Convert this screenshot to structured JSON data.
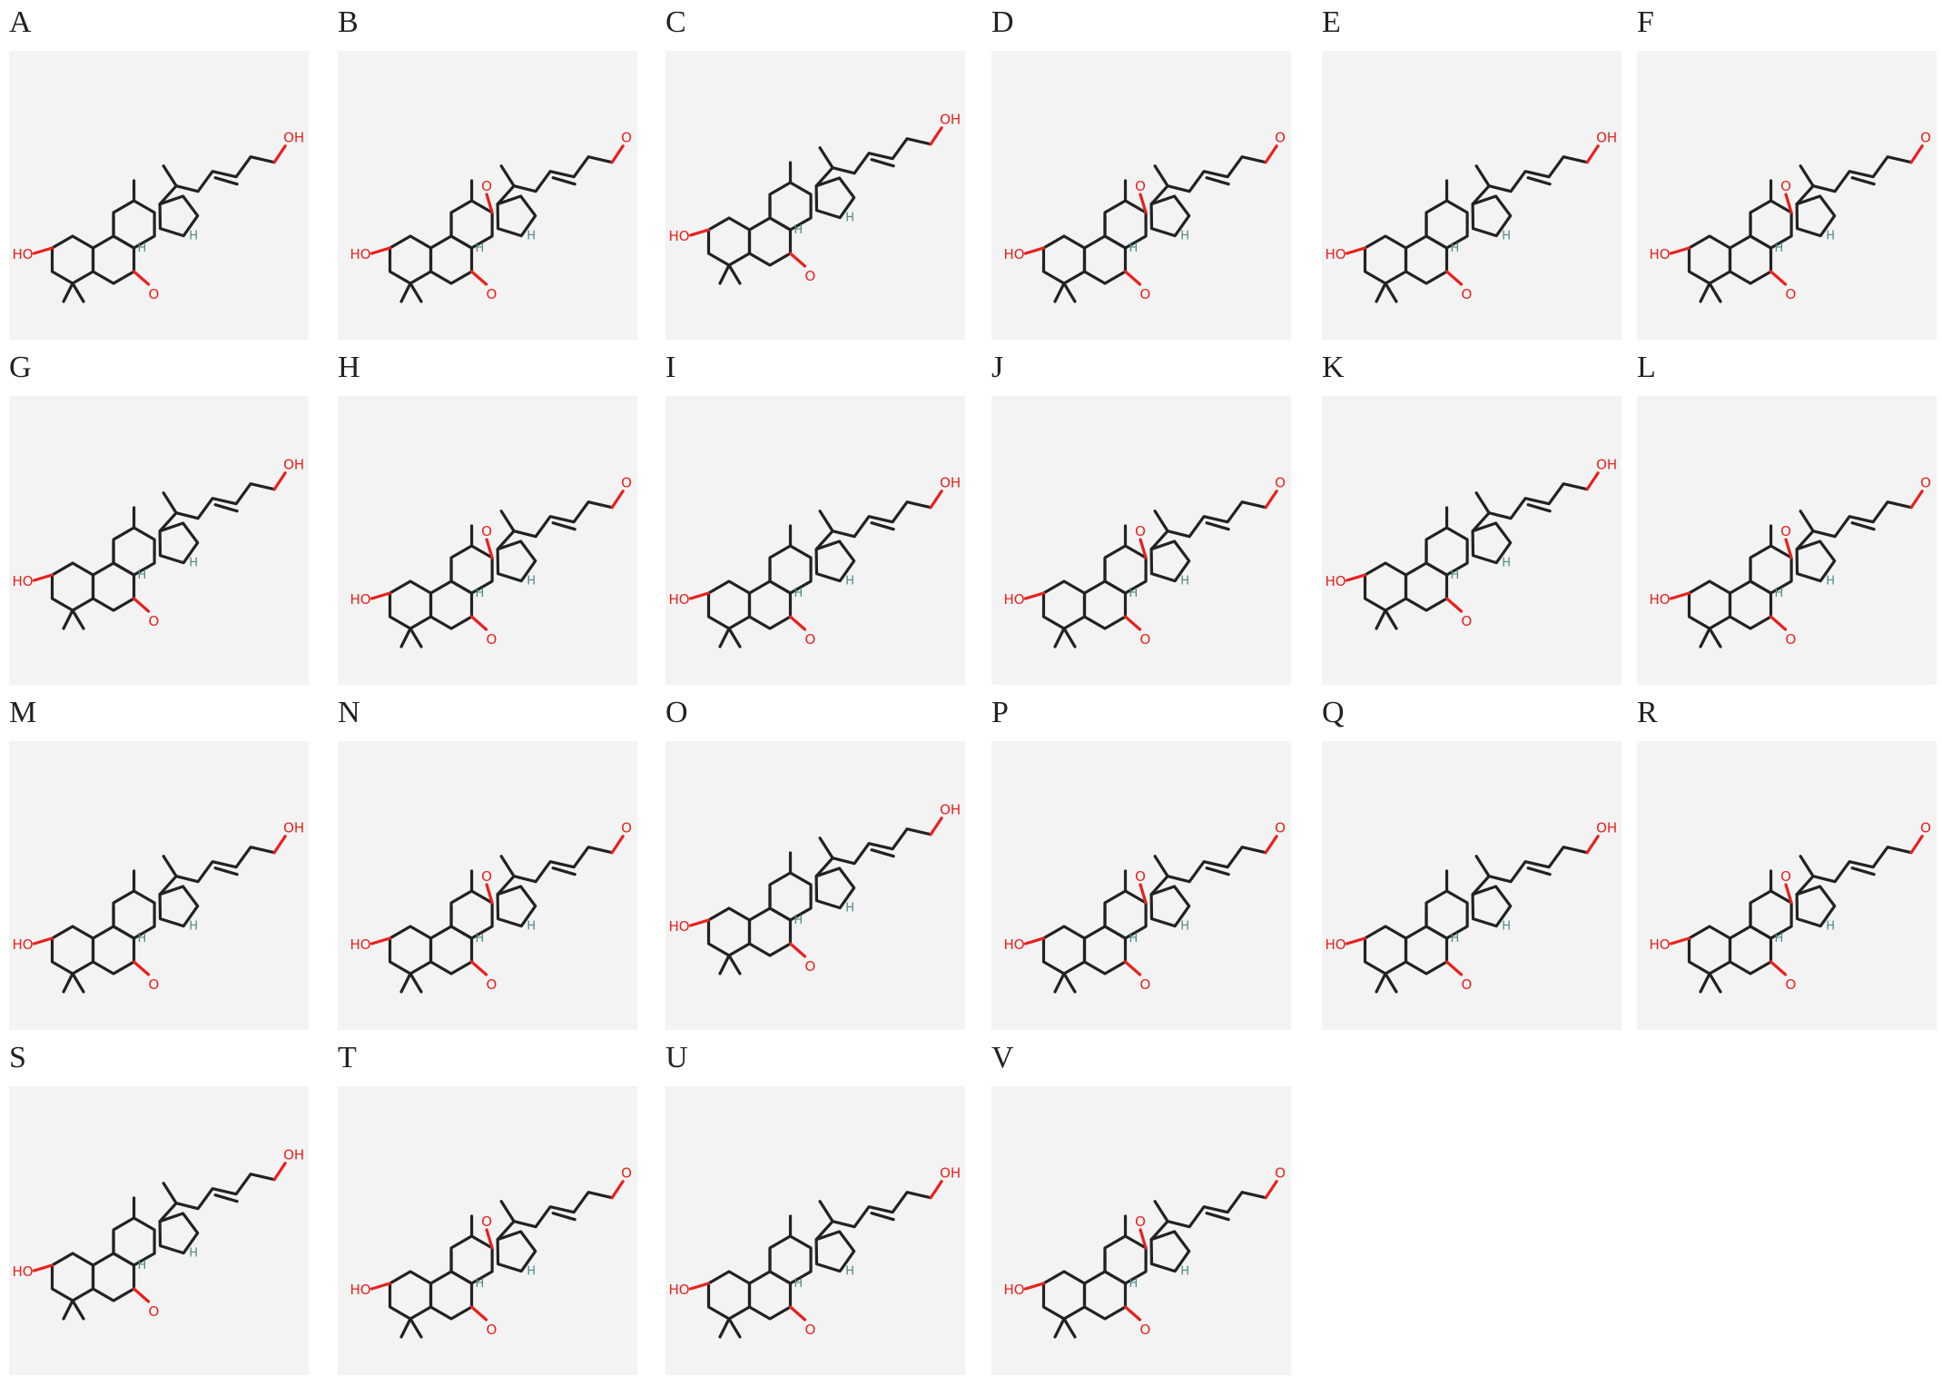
{
  "figure": {
    "panels": [
      {
        "label": "A",
        "variant": 0
      },
      {
        "label": "B",
        "variant": 1
      },
      {
        "label": "C",
        "variant": 2
      },
      {
        "label": "D",
        "variant": 3
      },
      {
        "label": "E",
        "variant": 0
      },
      {
        "label": "F",
        "variant": 1
      },
      {
        "label": "G",
        "variant": 2
      },
      {
        "label": "H",
        "variant": 3
      },
      {
        "label": "I",
        "variant": 0
      },
      {
        "label": "J",
        "variant": 1
      },
      {
        "label": "K",
        "variant": 2
      },
      {
        "label": "L",
        "variant": 3
      },
      {
        "label": "M",
        "variant": 0
      },
      {
        "label": "N",
        "variant": 1
      },
      {
        "label": "O",
        "variant": 2
      },
      {
        "label": "P",
        "variant": 3
      },
      {
        "label": "Q",
        "variant": 0
      },
      {
        "label": "R",
        "variant": 1
      },
      {
        "label": "S",
        "variant": 2
      },
      {
        "label": "T",
        "variant": 3
      },
      {
        "label": "U",
        "variant": 0
      },
      {
        "label": "V",
        "variant": 1
      }
    ],
    "colors": {
      "panel_background": "#f3f3f3",
      "bond": "#222222",
      "oxygen": "#e8211c",
      "hydrogen": "#4a8a8a"
    }
  }
}
